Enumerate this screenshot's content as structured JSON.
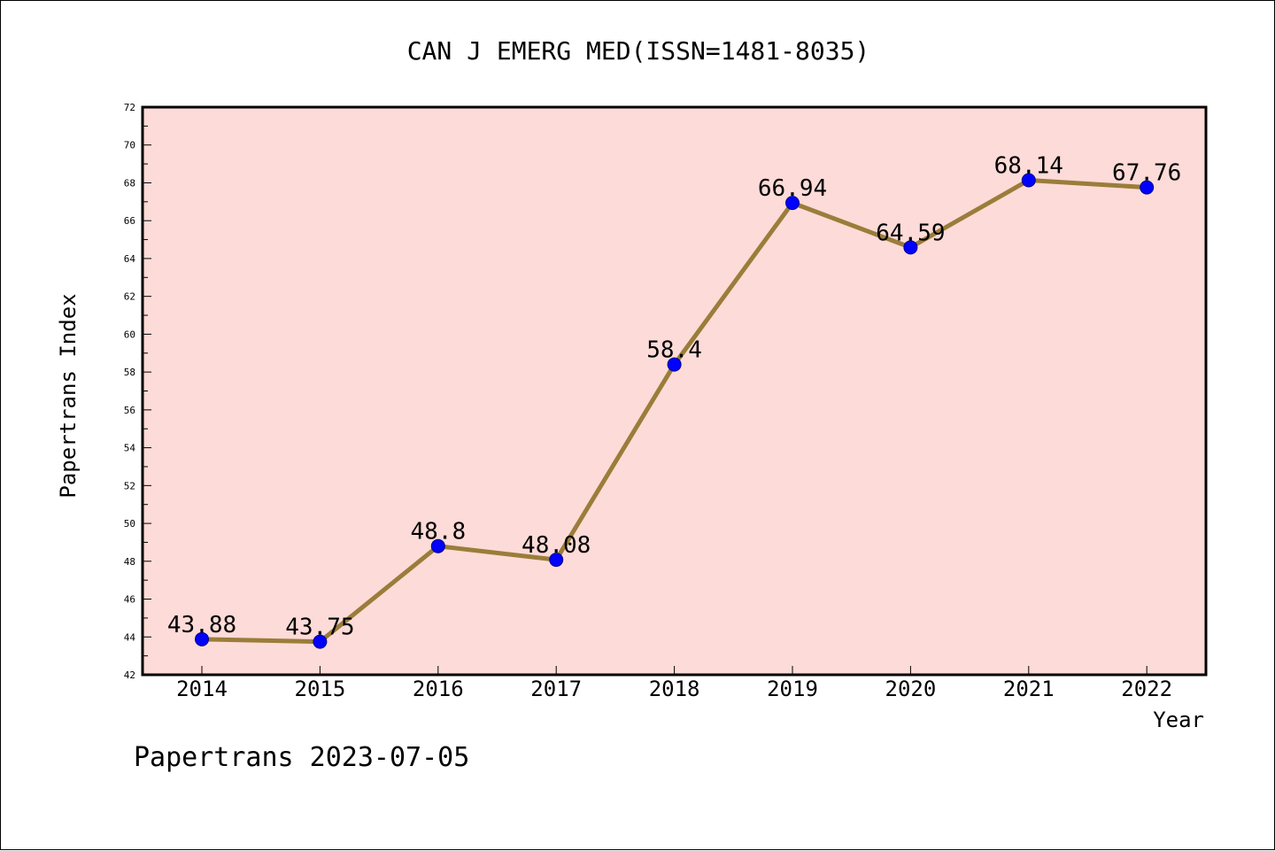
{
  "chart_data": {
    "type": "line",
    "title": "CAN J EMERG MED(ISSN=1481-8035)",
    "xlabel": "Year",
    "ylabel": "Papertrans Index",
    "categories": [
      "2014",
      "2015",
      "2016",
      "2017",
      "2018",
      "2019",
      "2020",
      "2021",
      "2022"
    ],
    "series": [
      {
        "values": [
          43.88,
          43.75,
          48.8,
          48.08,
          58.4,
          66.94,
          64.59,
          68.14,
          67.76
        ],
        "data_labels": [
          "43.88",
          "43.75",
          "48.8",
          "48.08",
          "58.4",
          "66.94",
          "64.59",
          "68.14",
          "67.76"
        ]
      }
    ],
    "ylim": [
      42,
      72
    ],
    "yticks": [
      "42",
      "44",
      "46",
      "48",
      "50",
      "52",
      "54",
      "56",
      "58",
      "60",
      "62",
      "64",
      "66",
      "68",
      "70",
      "72"
    ],
    "grid": false,
    "colors": {
      "plot_background": "#fddbd8",
      "line": "#9a7d3a",
      "marker": "#0000ff"
    }
  },
  "footer": "Papertrans 2023-07-05"
}
